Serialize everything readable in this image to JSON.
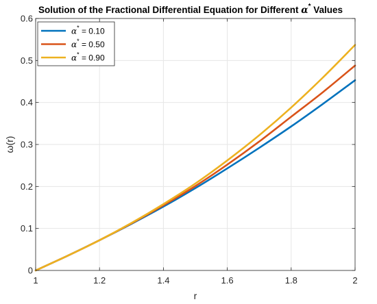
{
  "chart_data": {
    "type": "line",
    "title_prefix": "Solution of the Fractional Differential Equation for Different ",
    "title_symbol": "α",
    "title_sup": "*",
    "title_suffix": " Values",
    "xlabel": "r",
    "ylabel": "ω(r)",
    "xlim": [
      1,
      2
    ],
    "ylim": [
      0,
      0.6
    ],
    "xticks": [
      "1",
      "1.2",
      "1.4",
      "1.6",
      "1.8",
      "2"
    ],
    "xtick_values": [
      1,
      1.2,
      1.4,
      1.6,
      1.8,
      2
    ],
    "yticks": [
      "0",
      "0.1",
      "0.2",
      "0.3",
      "0.4",
      "0.5",
      "0.6"
    ],
    "ytick_values": [
      0,
      0.1,
      0.2,
      0.3,
      0.4,
      0.5,
      0.6
    ],
    "grid": true,
    "legend_position": "top-left",
    "x": [
      1.0,
      1.1,
      1.2,
      1.3,
      1.4,
      1.5,
      1.6,
      1.7,
      1.8,
      1.9,
      2.0
    ],
    "series": [
      {
        "label_symbol": "α",
        "label_sup": "*",
        "label_value": " = 0.10",
        "color": "#0072BD",
        "values": [
          0.0,
          0.035,
          0.072,
          0.111,
          0.152,
          0.196,
          0.243,
          0.292,
          0.343,
          0.397,
          0.453
        ]
      },
      {
        "label_symbol": "α",
        "label_sup": "*",
        "label_value": " = 0.50",
        "color": "#D95319",
        "values": [
          0.0,
          0.035,
          0.072,
          0.112,
          0.155,
          0.201,
          0.252,
          0.307,
          0.366,
          0.425,
          0.488
        ]
      },
      {
        "label_symbol": "α",
        "label_sup": "*",
        "label_value": " = 0.90",
        "color": "#EDB120",
        "values": [
          0.0,
          0.035,
          0.072,
          0.113,
          0.158,
          0.207,
          0.262,
          0.322,
          0.388,
          0.46,
          0.537
        ]
      }
    ]
  }
}
